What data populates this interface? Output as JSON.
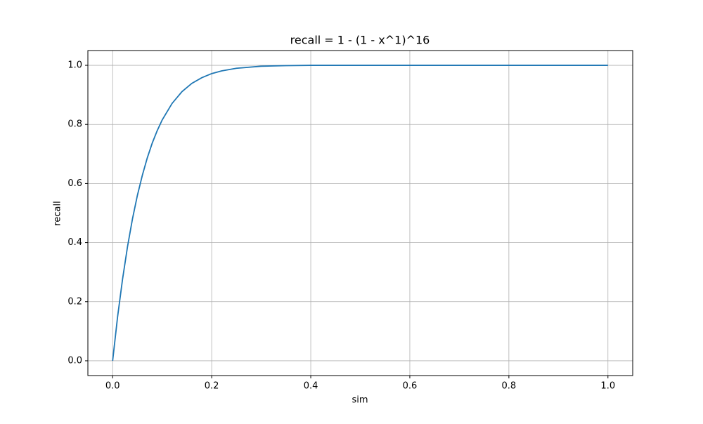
{
  "chart_data": {
    "type": "line",
    "title": "recall = 1 - (1 - x^1)^16",
    "x_label": "sim",
    "y_label": "recall",
    "x": [
      0,
      0.01,
      0.02,
      0.03,
      0.04,
      0.05,
      0.06,
      0.07,
      0.08,
      0.09,
      0.1,
      0.12,
      0.14,
      0.16,
      0.18,
      0.2,
      0.22,
      0.25,
      0.3,
      0.35,
      0.4,
      0.5,
      0.6,
      0.7,
      0.8,
      0.9,
      1.0
    ],
    "series": [
      {
        "color": "#1f77b4",
        "values": [
          0,
          0.149,
          0.276,
          0.386,
          0.48,
          0.56,
          0.628,
          0.687,
          0.737,
          0.779,
          0.815,
          0.871,
          0.911,
          0.939,
          0.958,
          0.972,
          0.981,
          0.99,
          0.997,
          0.999,
          1.0,
          1.0,
          1.0,
          1.0,
          1.0,
          1.0,
          1.0
        ]
      }
    ],
    "xlim": [
      -0.05,
      1.05
    ],
    "ylim": [
      -0.05,
      1.05
    ],
    "xticks": [
      {
        "value": 0,
        "label": "0.0"
      },
      {
        "value": 0.2,
        "label": "0.2"
      },
      {
        "value": 0.4,
        "label": "0.4"
      },
      {
        "value": 0.6,
        "label": "0.6"
      },
      {
        "value": 0.8,
        "label": "0.8"
      },
      {
        "value": 1,
        "label": "1.0"
      }
    ],
    "yticks": [
      {
        "value": 0,
        "label": "0.0"
      },
      {
        "value": 0.2,
        "label": "0.2"
      },
      {
        "value": 0.4,
        "label": "0.4"
      },
      {
        "value": 0.6,
        "label": "0.6"
      },
      {
        "value": 0.8,
        "label": "0.8"
      },
      {
        "value": 1,
        "label": "1.0"
      }
    ],
    "grid": true
  }
}
